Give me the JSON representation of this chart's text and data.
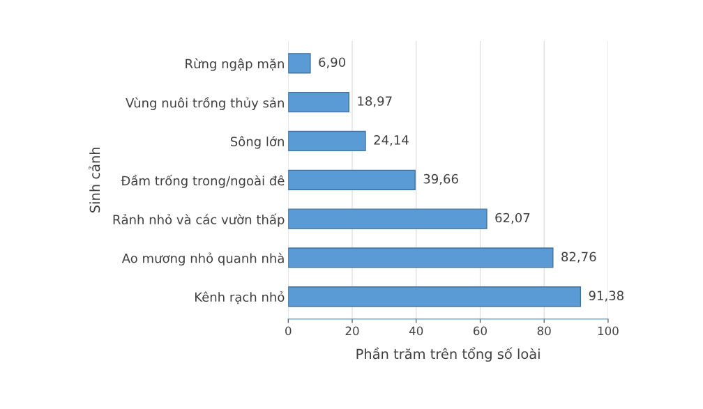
{
  "chart_data": {
    "type": "bar",
    "orientation": "horizontal",
    "categories": [
      "Rừng ngập mặn",
      "Vùng nuôi trồng thủy sản",
      "Sông lớn",
      "Đầm trống trong/ngoài đê",
      "Rảnh nhỏ và các vườn thấp",
      "Ao mương nhỏ quanh nhà",
      "Kênh rạch nhỏ"
    ],
    "values": [
      6.9,
      18.97,
      24.14,
      39.66,
      62.07,
      82.76,
      91.38
    ],
    "value_labels": [
      "6,90",
      "18,97",
      "24,14",
      "39,66",
      "62,07",
      "82,76",
      "91,38"
    ],
    "color": "#5b9bd5",
    "xlabel": "Phần trăm trên tổng số loài",
    "ylabel": "Sinh cảnh",
    "xlim": [
      0,
      100
    ],
    "xticks": [
      0,
      20,
      40,
      60,
      80,
      100
    ],
    "grid": "x"
  }
}
